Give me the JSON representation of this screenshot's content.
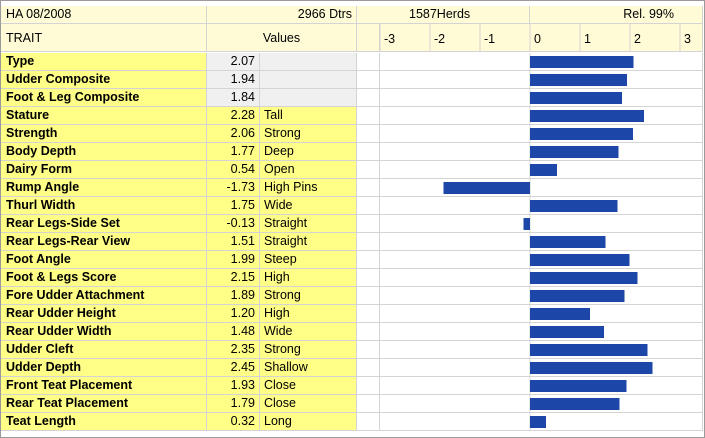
{
  "header": {
    "base": "HA 08/2008",
    "daughters": "2966 Dtrs",
    "herds": "1587Herds",
    "reliability": "Rel. 99%",
    "trait_label": "TRAIT",
    "values_label": "Values"
  },
  "colors": {
    "bar": "#1c47a8",
    "header_bg": "#fffbd6",
    "row_yellow": "#fffe86",
    "value_grey": "#f0f0f0"
  },
  "chart_data": {
    "type": "bar",
    "orientation": "horizontal",
    "xlim": [
      -3.5,
      3
    ],
    "x_ticks": [
      "-3",
      "-2",
      "-1",
      "0",
      "1",
      "2",
      "3"
    ],
    "categories": [
      "Type",
      "Udder Composite",
      "Foot & Leg Composite",
      "Stature",
      "Strength",
      "Body Depth",
      "Dairy Form",
      "Rump Angle",
      "Thurl Width",
      "Rear Legs-Side Set",
      "Rear Legs-Rear View",
      "Foot Angle",
      "Foot & Legs Score",
      "Fore Udder Attachment",
      "Rear Udder Height",
      "Rear Udder Width",
      "Udder Cleft",
      "Udder Depth",
      "Front Teat Placement",
      "Rear Teat Placement",
      "Teat Length"
    ],
    "values": [
      2.07,
      1.94,
      1.84,
      2.28,
      2.06,
      1.77,
      0.54,
      -1.73,
      1.75,
      -0.13,
      1.51,
      1.99,
      2.15,
      1.89,
      1.2,
      1.48,
      2.35,
      2.45,
      1.93,
      1.79,
      0.32
    ],
    "value_labels": [
      "2.07",
      "1.94",
      "1.84",
      "2.28",
      "2.06",
      "1.77",
      "0.54",
      "-1.73",
      "1.75",
      "-0.13",
      "1.51",
      "1.99",
      "2.15",
      "1.89",
      "1.20",
      "1.48",
      "2.35",
      "2.45",
      "1.93",
      "1.79",
      "0.32"
    ],
    "descriptions": [
      "",
      "",
      "",
      "Tall",
      "Strong",
      "Deep",
      "Open",
      "High Pins",
      "Wide",
      "Straight",
      "Straight",
      "Steep",
      "High",
      "Strong",
      "High",
      "Wide",
      "Strong",
      "Shallow",
      "Close",
      "Close",
      "Long"
    ],
    "grid": true
  }
}
